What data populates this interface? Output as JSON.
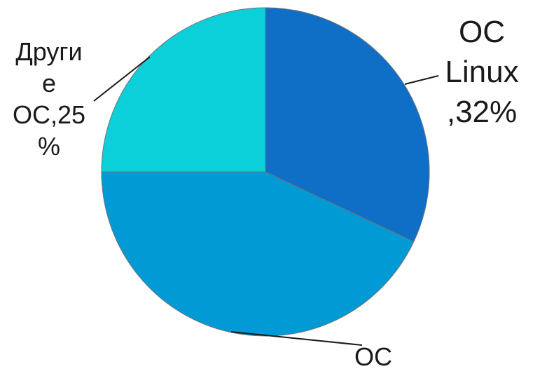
{
  "chart_data": {
    "type": "pie",
    "slices": [
      {
        "label_lines": [
          "ОС",
          "Linux",
          ",32%"
        ],
        "value": 32,
        "color": "#0f6fc6"
      },
      {
        "label_lines": [
          "ОС"
        ],
        "value": 43,
        "color": "#019ad5"
      },
      {
        "label_lines": [
          "Други",
          "е",
          "ОС,25",
          "%"
        ],
        "value": 25,
        "color": "#0bd0d9"
      }
    ],
    "start_angle": "top",
    "direction": "clockwise",
    "legend": "none"
  }
}
